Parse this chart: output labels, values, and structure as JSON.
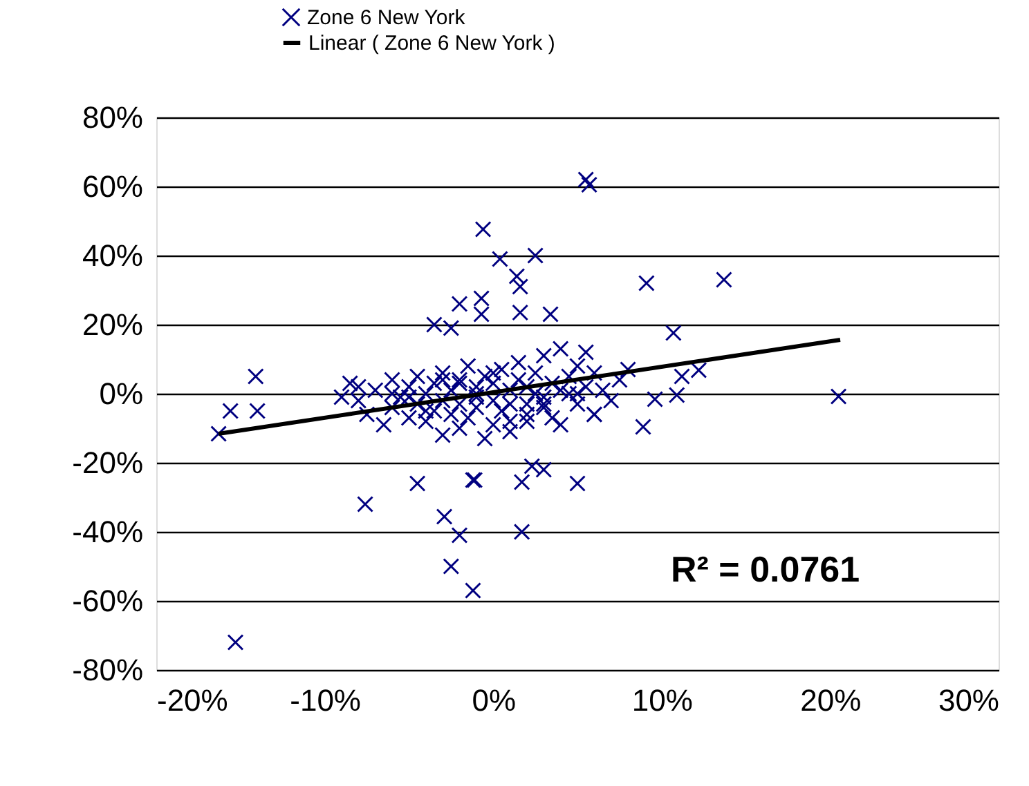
{
  "chart_data": {
    "type": "scatter",
    "grid": "y",
    "legend": "top",
    "xlim": [
      -20,
      30
    ],
    "ylim": [
      -80,
      80
    ],
    "xticks": [
      {
        "value": -20,
        "label": "-20%"
      },
      {
        "value": -10,
        "label": "-10%"
      },
      {
        "value": 0,
        "label": "0%"
      },
      {
        "value": 10,
        "label": "10%"
      },
      {
        "value": 20,
        "label": "20%"
      },
      {
        "value": 30,
        "label": "30%"
      }
    ],
    "yticks": [
      {
        "value": -80,
        "label": "-80%"
      },
      {
        "value": -60,
        "label": "-60%"
      },
      {
        "value": -40,
        "label": "-40%"
      },
      {
        "value": -20,
        "label": "-20%"
      },
      {
        "value": 0,
        "label": "0%"
      },
      {
        "value": 20,
        "label": "20%"
      },
      {
        "value": 40,
        "label": "40%"
      },
      {
        "value": 60,
        "label": "60%"
      },
      {
        "value": 80,
        "label": "80%"
      }
    ],
    "annotations": [
      "R² = 0.0761"
    ],
    "series": [
      {
        "name": "Zone 6 New York",
        "color": "#000080",
        "marker": "cross",
        "x": [
          -16.3,
          -15.6,
          -14.1,
          -14.0,
          -15.3,
          -7.6,
          -4.5,
          -1.2,
          -2.9,
          -2.0,
          -2.5,
          -1.2,
          -0.6,
          0.4,
          2.5,
          1.4,
          1.6,
          1.6,
          -2.0,
          -0.7,
          -0.7,
          -3.5,
          -2.5,
          3.4,
          5.5,
          5.7,
          9.1,
          13.7,
          10.7,
          11.2,
          12.2,
          9.6,
          10.9,
          8.9,
          20.5,
          5.0,
          1.7,
          1.7,
          3.0,
          2.3,
          -1.1,
          -9,
          -8.5,
          -8,
          -7.5,
          -7,
          -6.5,
          -6,
          -6,
          -5.5,
          -5,
          -5,
          -4.5,
          -4.5,
          -4,
          -4,
          -3.5,
          -3.5,
          -3,
          -3,
          -3,
          -2.5,
          -2.5,
          -2,
          -2,
          -2,
          -1.5,
          -1.5,
          -1,
          -1,
          -1,
          -0.5,
          -0.5,
          0,
          0,
          0,
          0.5,
          0.5,
          1,
          1,
          1,
          1.5,
          1.5,
          2,
          2,
          2,
          2.5,
          2.5,
          3,
          3,
          3,
          3.5,
          3.5,
          4,
          4,
          4.5,
          4.5,
          5,
          5,
          5.5,
          5.5,
          6,
          6,
          6.5,
          7,
          7.5,
          8,
          -6,
          -4,
          -2,
          0,
          2,
          4,
          6,
          -8,
          -5,
          -3,
          -1,
          1,
          3,
          5
        ],
        "values": [
          -11.6,
          -5,
          5,
          -5,
          -72,
          -32,
          -26,
          -25,
          -35.6,
          -41,
          -50,
          -57,
          47.6,
          39,
          40,
          34,
          31,
          23.5,
          26,
          27.6,
          23,
          20,
          19,
          23,
          62,
          60.5,
          32,
          33,
          17.6,
          5,
          6.8,
          -1.6,
          -0.4,
          -9.6,
          -0.8,
          -26,
          -25.6,
          -40,
          -22,
          -21,
          -25,
          -1,
          3,
          -2,
          -6,
          1,
          -9,
          -4,
          4,
          -1,
          -7,
          2,
          -3,
          5,
          -8,
          0,
          -5,
          3,
          -12,
          -2,
          6,
          -6,
          1,
          -10,
          -3,
          4,
          -7,
          8,
          -1,
          -4,
          2,
          -13,
          5,
          -2,
          -9,
          3,
          7,
          -5,
          1,
          -11,
          -3,
          4,
          9,
          -6,
          2,
          -8,
          0,
          6,
          -4,
          11,
          -1,
          -7,
          3,
          13,
          -9,
          5,
          0,
          8,
          -3,
          12,
          2,
          -6,
          6,
          1,
          -2,
          4,
          7,
          0,
          -5,
          3,
          6,
          -3,
          1,
          -6,
          2,
          -1,
          4,
          0,
          -8,
          -3,
          0
        ]
      },
      {
        "name": "Linear ( Zone 6 New York )",
        "type": "line",
        "color": "#000000",
        "line_style": "solid",
        "x": [
          -16.3,
          20.6
        ],
        "values": [
          -11.6,
          15.6
        ]
      }
    ]
  }
}
